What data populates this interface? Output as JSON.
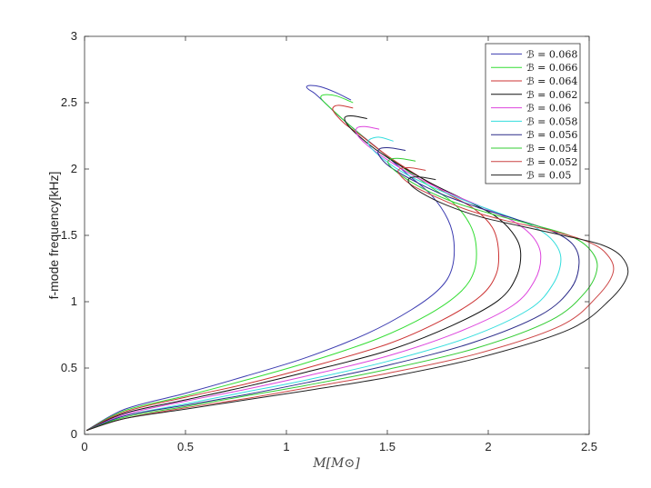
{
  "chart_data": {
    "type": "line",
    "title": "",
    "xlabel": "M[M⊙]",
    "ylabel": "f-mode frequency[kHz]",
    "xlim": [
      0,
      2.5
    ],
    "ylim": [
      0,
      3
    ],
    "xticks": [
      0,
      0.5,
      1,
      1.5,
      2,
      2.5
    ],
    "yticks": [
      0,
      0.5,
      1,
      1.5,
      2,
      2.5,
      3
    ],
    "xtick_labels": [
      "0",
      "0.5",
      "1",
      "1.5",
      "2",
      "2.5"
    ],
    "ytick_labels": [
      "0",
      "0.5",
      "1",
      "1.5",
      "2",
      "2.5",
      "3"
    ],
    "grid": false,
    "legend_position": "top-right",
    "series": [
      {
        "name": "ℬ = 0.068",
        "color": "#3b3bb0",
        "x": [
          0.01,
          0.2,
          0.5,
          0.8,
          1.1,
          1.4,
          1.62,
          1.76,
          1.82,
          1.83,
          1.8,
          1.72,
          1.6,
          1.48,
          1.36,
          1.26,
          1.19,
          1.14,
          1.11,
          1.1,
          1.12,
          1.17,
          1.24,
          1.32
        ],
        "y": [
          0.03,
          0.19,
          0.31,
          0.44,
          0.58,
          0.76,
          0.94,
          1.1,
          1.25,
          1.45,
          1.62,
          1.8,
          1.96,
          2.12,
          2.27,
          2.4,
          2.5,
          2.57,
          2.6,
          2.62,
          2.63,
          2.62,
          2.58,
          2.52
        ]
      },
      {
        "name": "ℬ = 0.066",
        "color": "#33dd33",
        "x": [
          0.01,
          0.2,
          0.5,
          0.8,
          1.1,
          1.45,
          1.7,
          1.86,
          1.93,
          1.94,
          1.91,
          1.83,
          1.7,
          1.56,
          1.43,
          1.32,
          1.24,
          1.19,
          1.17,
          1.19,
          1.25,
          1.33
        ],
        "y": [
          0.03,
          0.18,
          0.29,
          0.41,
          0.54,
          0.72,
          0.9,
          1.07,
          1.23,
          1.42,
          1.58,
          1.74,
          1.88,
          2.03,
          2.18,
          2.32,
          2.43,
          2.5,
          2.54,
          2.56,
          2.55,
          2.5
        ]
      },
      {
        "name": "ℬ = 0.064",
        "color": "#cc3333",
        "x": [
          0.01,
          0.2,
          0.5,
          0.8,
          1.1,
          1.5,
          1.77,
          1.96,
          2.04,
          2.05,
          2.02,
          1.93,
          1.79,
          1.64,
          1.5,
          1.38,
          1.29,
          1.24,
          1.23,
          1.26,
          1.33
        ],
        "y": [
          0.03,
          0.17,
          0.28,
          0.38,
          0.5,
          0.68,
          0.86,
          1.04,
          1.21,
          1.4,
          1.56,
          1.7,
          1.82,
          1.96,
          2.1,
          2.24,
          2.34,
          2.42,
          2.46,
          2.48,
          2.46
        ]
      },
      {
        "name": "ℬ = 0.062",
        "color": "#111111",
        "x": [
          0.01,
          0.2,
          0.5,
          0.8,
          1.1,
          1.5,
          1.82,
          2.05,
          2.14,
          2.16,
          2.12,
          2.03,
          1.88,
          1.72,
          1.57,
          1.44,
          1.35,
          1.3,
          1.29,
          1.33,
          1.4
        ],
        "y": [
          0.03,
          0.16,
          0.26,
          0.36,
          0.47,
          0.63,
          0.82,
          1.01,
          1.19,
          1.38,
          1.52,
          1.65,
          1.77,
          1.89,
          2.02,
          2.15,
          2.26,
          2.34,
          2.39,
          2.4,
          2.38
        ]
      },
      {
        "name": "ℬ = 0.06",
        "color": "#dd44dd",
        "x": [
          0.01,
          0.2,
          0.5,
          0.8,
          1.1,
          1.5,
          1.85,
          2.12,
          2.23,
          2.26,
          2.22,
          2.12,
          1.96,
          1.79,
          1.63,
          1.5,
          1.4,
          1.35,
          1.35,
          1.39,
          1.46
        ],
        "y": [
          0.03,
          0.15,
          0.25,
          0.34,
          0.44,
          0.59,
          0.77,
          0.97,
          1.16,
          1.35,
          1.49,
          1.61,
          1.72,
          1.83,
          1.95,
          2.07,
          2.18,
          2.26,
          2.31,
          2.32,
          2.3
        ]
      },
      {
        "name": "ℬ = 0.058",
        "color": "#33dddd",
        "x": [
          0.01,
          0.2,
          0.5,
          0.8,
          1.1,
          1.5,
          1.9,
          2.2,
          2.32,
          2.36,
          2.32,
          2.22,
          2.05,
          1.87,
          1.7,
          1.56,
          1.46,
          1.41,
          1.41,
          1.46,
          1.53
        ],
        "y": [
          0.03,
          0.14,
          0.23,
          0.32,
          0.41,
          0.55,
          0.73,
          0.94,
          1.13,
          1.32,
          1.46,
          1.57,
          1.67,
          1.77,
          1.88,
          1.99,
          2.1,
          2.18,
          2.22,
          2.24,
          2.21
        ]
      },
      {
        "name": "ℬ = 0.056",
        "color": "#2a2a88",
        "x": [
          0.01,
          0.2,
          0.5,
          0.8,
          1.1,
          1.5,
          1.92,
          2.26,
          2.41,
          2.45,
          2.42,
          2.32,
          2.14,
          1.95,
          1.77,
          1.62,
          1.51,
          1.46,
          1.46,
          1.51,
          1.59
        ],
        "y": [
          0.03,
          0.14,
          0.22,
          0.3,
          0.39,
          0.52,
          0.69,
          0.9,
          1.1,
          1.29,
          1.43,
          1.53,
          1.62,
          1.71,
          1.81,
          1.92,
          2.02,
          2.1,
          2.15,
          2.16,
          2.14
        ]
      },
      {
        "name": "ℬ = 0.054",
        "color": "#33cc33",
        "x": [
          0.01,
          0.2,
          0.5,
          0.8,
          1.1,
          1.5,
          1.94,
          2.31,
          2.48,
          2.54,
          2.5,
          2.4,
          2.22,
          2.02,
          1.83,
          1.68,
          1.57,
          1.51,
          1.51,
          1.56,
          1.64
        ],
        "y": [
          0.03,
          0.13,
          0.21,
          0.29,
          0.37,
          0.49,
          0.65,
          0.86,
          1.07,
          1.26,
          1.4,
          1.5,
          1.58,
          1.66,
          1.75,
          1.85,
          1.95,
          2.03,
          2.07,
          2.08,
          2.06
        ]
      },
      {
        "name": "ℬ = 0.052",
        "color": "#cc4444",
        "x": [
          0.01,
          0.2,
          0.5,
          0.8,
          1.1,
          1.5,
          1.95,
          2.36,
          2.54,
          2.62,
          2.58,
          2.48,
          2.3,
          2.09,
          1.9,
          1.74,
          1.62,
          1.56,
          1.56,
          1.61,
          1.69
        ],
        "y": [
          0.03,
          0.12,
          0.2,
          0.27,
          0.35,
          0.46,
          0.61,
          0.82,
          1.04,
          1.23,
          1.37,
          1.46,
          1.54,
          1.61,
          1.69,
          1.79,
          1.88,
          1.96,
          2.0,
          2.01,
          1.99
        ]
      },
      {
        "name": "ℬ = 0.05",
        "color": "#222222",
        "x": [
          0.01,
          0.2,
          0.5,
          0.8,
          1.1,
          1.5,
          1.96,
          2.4,
          2.6,
          2.69,
          2.66,
          2.56,
          2.37,
          2.16,
          1.96,
          1.79,
          1.67,
          1.61,
          1.61,
          1.66,
          1.74
        ],
        "y": [
          0.03,
          0.12,
          0.19,
          0.26,
          0.33,
          0.43,
          0.58,
          0.79,
          1.01,
          1.2,
          1.34,
          1.43,
          1.5,
          1.57,
          1.64,
          1.73,
          1.82,
          1.89,
          1.93,
          1.94,
          1.92
        ]
      }
    ]
  }
}
